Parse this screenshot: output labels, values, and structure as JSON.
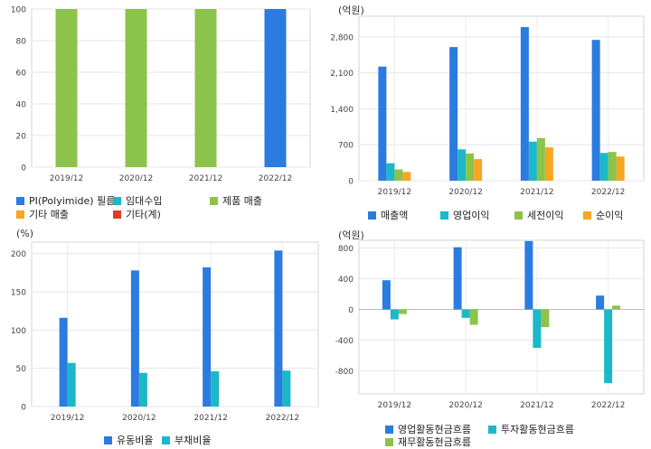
{
  "chart_data": [
    {
      "type": "bar",
      "categories": [
        "2019/12",
        "2020/12",
        "2021/12",
        "2022/12"
      ],
      "yticks": [
        "0",
        "20",
        "40",
        "60",
        "80",
        "100"
      ],
      "ylim": [
        0,
        100
      ],
      "grid": true,
      "legend_position": "bottom",
      "series": [
        {
          "name": "PI(Polyimide) 필름",
          "color": "#2b7be0",
          "values": [
            0,
            0,
            0,
            100
          ]
        },
        {
          "name": "임대수입",
          "color": "#1bb8c8",
          "values": [
            0,
            0,
            0,
            0
          ]
        },
        {
          "name": "제품 매출",
          "color": "#8cc34a",
          "values": [
            100,
            100,
            100,
            0
          ]
        },
        {
          "name": "기타 매출",
          "color": "#f5a623",
          "values": [
            0,
            0,
            0,
            0
          ]
        },
        {
          "name": "기타(계)",
          "color": "#e03a2b",
          "values": [
            0,
            0,
            0,
            0
          ]
        }
      ]
    },
    {
      "type": "bar",
      "unit": "(억원)",
      "categories": [
        "2019/12",
        "2020/12",
        "2021/12",
        "2022/12"
      ],
      "yticks": [
        "0",
        "700",
        "1,400",
        "2,100",
        "2,800"
      ],
      "ylim": [
        0,
        3200
      ],
      "grid": true,
      "legend_position": "bottom",
      "series": [
        {
          "name": "매출액",
          "color": "#2b7be0",
          "values": [
            2220,
            2600,
            2990,
            2740
          ]
        },
        {
          "name": "영업이익",
          "color": "#1bb8c8",
          "values": [
            340,
            610,
            760,
            540
          ]
        },
        {
          "name": "세전이익",
          "color": "#8cc34a",
          "values": [
            220,
            530,
            830,
            560
          ]
        },
        {
          "name": "순이익",
          "color": "#f5a623",
          "values": [
            170,
            420,
            650,
            470
          ]
        }
      ]
    },
    {
      "type": "bar",
      "unit": "(%)",
      "categories": [
        "2019/12",
        "2020/12",
        "2021/12",
        "2022/12"
      ],
      "yticks": [
        "0",
        "50",
        "100",
        "150",
        "200"
      ],
      "ylim": [
        0,
        215
      ],
      "grid": true,
      "legend_position": "bottom",
      "series": [
        {
          "name": "유동비율",
          "color": "#2b7be0",
          "values": [
            116,
            178,
            182,
            204
          ]
        },
        {
          "name": "부채비율",
          "color": "#1bb8c8",
          "values": [
            57,
            44,
            46,
            47
          ]
        }
      ]
    },
    {
      "type": "bar",
      "unit": "(억원)",
      "categories": [
        "2019/12",
        "2020/12",
        "2021/12",
        "2022/12"
      ],
      "yticks": [
        "-800",
        "-400",
        "0",
        "400",
        "800"
      ],
      "ylim": [
        -1100,
        900
      ],
      "grid": true,
      "legend_position": "bottom",
      "series": [
        {
          "name": "영업활동현금흐름",
          "color": "#2b7be0",
          "values": [
            380,
            810,
            890,
            180
          ]
        },
        {
          "name": "투자활동현금흐름",
          "color": "#1bb8c8",
          "values": [
            -130,
            -110,
            -500,
            -960
          ]
        },
        {
          "name": "재무활동현금흐름",
          "color": "#8cc34a",
          "values": [
            -60,
            -200,
            -230,
            50
          ]
        }
      ]
    }
  ]
}
